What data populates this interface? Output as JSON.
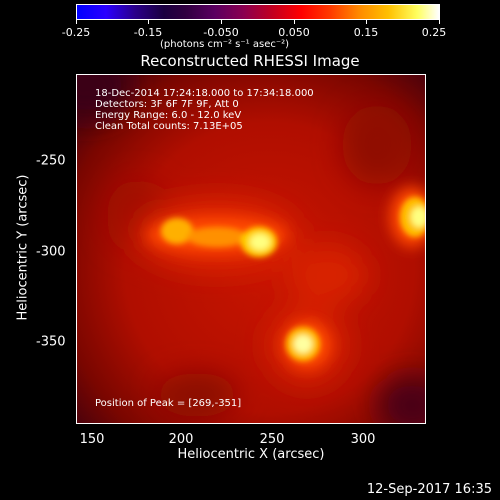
{
  "colorbar": {
    "ticks": [
      "-0.25",
      "-0.15",
      "-0.050",
      "0.050",
      "0.15",
      "0.25"
    ],
    "units": "(photons cm⁻² s⁻¹ asec⁻²)"
  },
  "title": "Reconstructed RHESSI Image",
  "info": {
    "line1": "18-Dec-2014 17:24:18.000 to 17:34:18.000",
    "line2": "Detectors: 3F 6F 7F 9F, Att 0",
    "line3": "Energy Range: 6.0 - 12.0 keV",
    "line4": "Clean     Total counts: 7.13E+05",
    "peak": "Position of Peak = [269,-351]"
  },
  "axes": {
    "xlabel": "Heliocentric X (arcsec)",
    "ylabel": "Heliocentric Y (arcsec)",
    "xticks": [
      "150",
      "200",
      "250",
      "300"
    ],
    "yticks": [
      "-250",
      "-300",
      "-350"
    ]
  },
  "timestamp": "12-Sep-2017 16:35"
}
